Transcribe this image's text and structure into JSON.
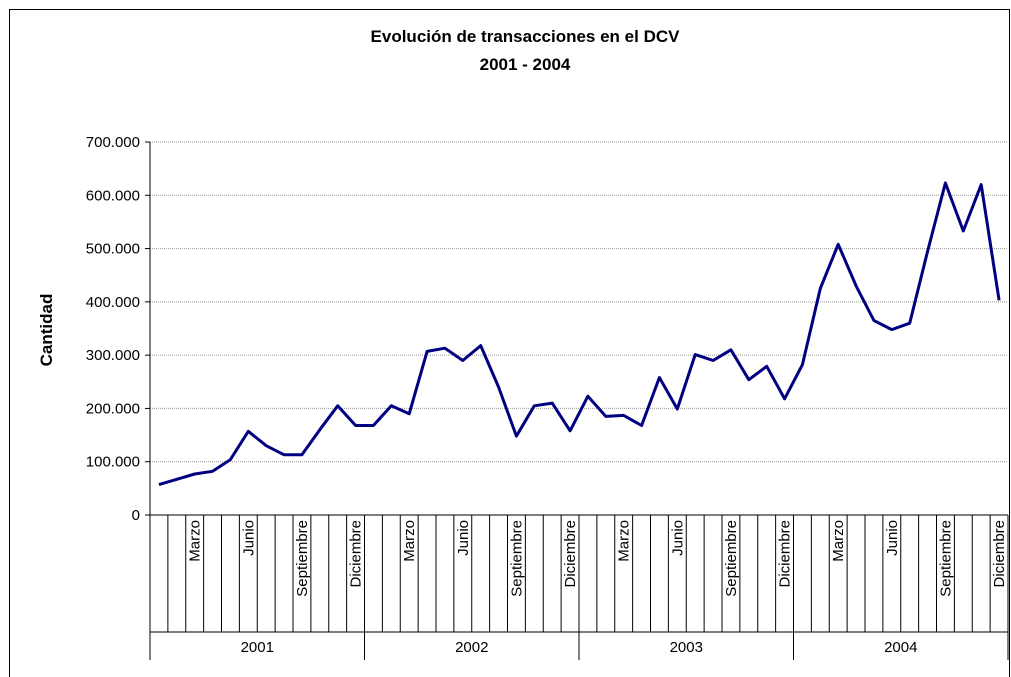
{
  "chart_data": {
    "type": "line",
    "title": "Evolución de transacciones en el DCV",
    "subtitle": "2001 - 2004",
    "y_label": "Cantidad",
    "categories": [
      null,
      null,
      "Marzo",
      null,
      null,
      "Junio",
      null,
      null,
      "Septiembre",
      null,
      null,
      "Diciembre",
      null,
      null,
      "Marzo",
      null,
      null,
      "Junio",
      null,
      null,
      "Septiembre",
      null,
      null,
      "Diciembre",
      null,
      null,
      "Marzo",
      null,
      null,
      "Junio",
      null,
      null,
      "Septiembre",
      null,
      null,
      "Diciembre",
      null,
      null,
      "Marzo",
      null,
      null,
      "Junio",
      null,
      null,
      "Septiembre",
      null,
      null,
      "Diciembre"
    ],
    "groups": [
      "2001",
      "2002",
      "2003",
      "2004"
    ],
    "series": [
      {
        "color": "#000080",
        "values": [
          57000,
          67000,
          77000,
          82000,
          104000,
          157000,
          130000,
          113000,
          113000,
          160000,
          205000,
          168000,
          168000,
          205000,
          190000,
          307000,
          313000,
          290000,
          318000,
          240000,
          148000,
          205000,
          210000,
          158000,
          223000,
          185000,
          187000,
          168000,
          258000,
          199000,
          301000,
          290000,
          310000,
          254000,
          279000,
          218000,
          282000,
          425000,
          508000,
          430000,
          365000,
          348000,
          360000,
          495000,
          623000,
          533000,
          620000,
          403000
        ]
      }
    ],
    "ylim": [
      0,
      700000
    ],
    "yticks": [
      0,
      {
        "value": 100000,
        "label": "100.000"
      },
      {
        "value": 200000,
        "label": "200.000"
      },
      {
        "value": 300000,
        "label": "300.000"
      },
      {
        "value": 400000,
        "label": "400.000"
      },
      {
        "value": 500000,
        "label": "500.000"
      },
      {
        "value": 600000,
        "label": "600.000"
      },
      {
        "value": 700000,
        "label": "700.000"
      }
    ],
    "grid": true
  }
}
